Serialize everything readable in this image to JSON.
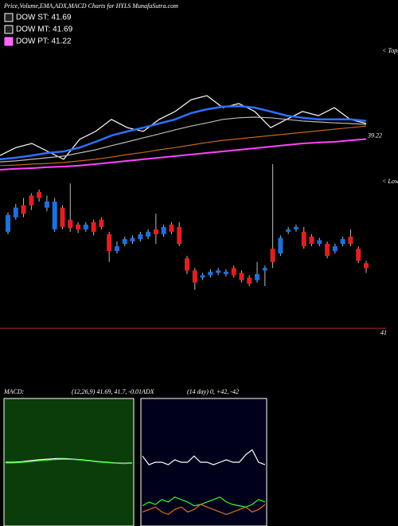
{
  "chart_data": [
    {
      "type": "line",
      "title": "Price,Volume,EMA,ADX,MACD Charts for HYLS MunafaSutra.com",
      "annotation": "< Tops",
      "legend": [
        {
          "label": "DOW ST: 41.69",
          "color": "#ffffff"
        },
        {
          "label": "DOW MT: 41.69",
          "color": "#ffffff"
        },
        {
          "label": "DOW PT: 41.22",
          "color": "#ff66ff"
        }
      ],
      "ylim": [
        38.2,
        42.1
      ],
      "series": [
        {
          "color": "#ffffff",
          "values": [
            38.7,
            38.95,
            39.08,
            38.83,
            38.58,
            39.21,
            39.46,
            39.84,
            39.58,
            39.46,
            39.84,
            40.09,
            40.46,
            40.59,
            40.21,
            40.34,
            40.09,
            39.58,
            39.84,
            40.09,
            39.96,
            40.21,
            39.84,
            39.71
          ]
        },
        {
          "color": "#2f6fff",
          "values": [
            38.58,
            38.63,
            38.7,
            38.78,
            38.83,
            38.95,
            39.13,
            39.33,
            39.46,
            39.58,
            39.71,
            39.84,
            40.04,
            40.16,
            40.24,
            40.26,
            40.21,
            40.09,
            39.96,
            39.89,
            39.84,
            39.84,
            39.84,
            39.79
          ]
        },
        {
          "color": "#bbbbbb",
          "values": [
            38.5,
            38.53,
            38.58,
            38.63,
            38.68,
            38.78,
            38.88,
            39.01,
            39.13,
            39.26,
            39.38,
            39.51,
            39.63,
            39.73,
            39.84,
            39.89,
            39.91,
            39.89,
            39.84,
            39.79,
            39.76,
            39.73,
            39.71,
            39.68
          ]
        },
        {
          "color": "#c8641e",
          "values": [
            38.38,
            38.4,
            38.43,
            38.45,
            38.48,
            38.53,
            38.58,
            38.65,
            38.73,
            38.8,
            38.88,
            38.95,
            39.03,
            39.11,
            39.18,
            39.23,
            39.28,
            39.33,
            39.38,
            39.43,
            39.48,
            39.53,
            39.58,
            39.63
          ]
        },
        {
          "color": "#ff44ff",
          "values": [
            38.25,
            38.28,
            38.3,
            38.33,
            38.35,
            38.38,
            38.43,
            38.48,
            38.53,
            38.58,
            38.63,
            38.68,
            38.73,
            38.78,
            38.83,
            38.88,
            38.93,
            38.98,
            39.03,
            39.08,
            39.11,
            39.13,
            39.18,
            39.22
          ]
        }
      ]
    },
    {
      "type": "candlestick",
      "annotation": "< Lows",
      "ylim": [
        41.0,
        42.4
      ],
      "up_color": "#1e6fe0",
      "down_color": "#e02020",
      "reference_line": 41,
      "open": [
        41.8,
        41.92,
        42.02,
        42.1,
        42.13,
        42.0,
        41.82,
        42.0,
        41.9,
        41.86,
        41.82,
        41.88,
        41.9,
        41.78,
        41.64,
        41.7,
        41.72,
        41.74,
        41.76,
        41.82,
        41.78,
        41.86,
        41.84,
        41.58,
        41.48,
        41.42,
        41.44,
        41.46,
        41.45,
        41.5,
        41.46,
        41.42,
        41.4,
        41.48,
        41.66,
        41.62,
        41.8,
        41.82,
        41.8,
        41.76,
        41.7,
        41.7,
        41.64,
        41.7,
        41.76,
        41.66,
        41.54
      ],
      "high": [
        41.96,
        42.03,
        42.08,
        42.12,
        42.15,
        42.1,
        42.08,
        42.02,
        42.2,
        41.88,
        41.88,
        41.9,
        41.92,
        41.8,
        41.72,
        41.76,
        41.77,
        41.8,
        41.82,
        41.95,
        41.86,
        41.88,
        41.88,
        41.6,
        41.5,
        41.46,
        41.49,
        41.5,
        41.49,
        41.52,
        41.48,
        41.44,
        41.55,
        41.52,
        42.36,
        41.77,
        41.84,
        41.86,
        41.84,
        41.78,
        41.75,
        41.72,
        41.7,
        41.76,
        41.82,
        41.68,
        41.56
      ],
      "low": [
        41.78,
        41.9,
        41.92,
        41.98,
        42.05,
        41.97,
        41.8,
        41.82,
        41.8,
        41.79,
        41.8,
        41.77,
        41.82,
        41.55,
        41.62,
        41.68,
        41.7,
        41.72,
        41.74,
        41.7,
        41.76,
        41.78,
        41.68,
        41.45,
        41.32,
        41.4,
        41.42,
        41.44,
        41.43,
        41.42,
        41.38,
        41.35,
        41.38,
        41.35,
        41.5,
        41.6,
        41.78,
        41.8,
        41.66,
        41.68,
        41.68,
        41.58,
        41.62,
        41.68,
        41.68,
        41.54,
        41.46
      ],
      "close": [
        41.94,
        42.0,
        41.95,
        42.02,
        42.08,
        42.05,
        42.05,
        41.84,
        41.83,
        41.82,
        41.86,
        41.8,
        41.84,
        41.64,
        41.68,
        41.74,
        41.75,
        41.78,
        41.8,
        41.78,
        41.84,
        41.8,
        41.7,
        41.48,
        41.38,
        41.44,
        41.47,
        41.48,
        41.47,
        41.44,
        41.4,
        41.37,
        41.45,
        41.5,
        41.55,
        41.75,
        41.82,
        41.84,
        41.68,
        41.7,
        41.73,
        41.6,
        41.68,
        41.74,
        41.7,
        41.56,
        41.5
      ]
    },
    {
      "type": "line",
      "title": "MACD:",
      "subtitle": "(12,26,9) 41.69, 41.7, -0.01",
      "ylim": [
        -2,
        2
      ],
      "background": "#0b3d0b",
      "series": [
        {
          "color": "#ffffff",
          "values": [
            0,
            0,
            0.02,
            0.05,
            0.08,
            0.1,
            0.12,
            0.12,
            0.1,
            0.08,
            0.05,
            0.02,
            0,
            -0.02,
            -0.03,
            -0.02
          ]
        },
        {
          "color": "#33ff33",
          "values": [
            -0.02,
            -0.02,
            0,
            0.02,
            0.05,
            0.07,
            0.09,
            0.1,
            0.09,
            0.07,
            0.04,
            0.01,
            -0.01,
            -0.03,
            -0.04,
            -0.03
          ]
        }
      ]
    },
    {
      "type": "line",
      "title": "ADX",
      "subtitle": "(14 day) 0, +42, -42",
      "ylim": [
        0,
        100
      ],
      "background": "#00001a",
      "series": [
        {
          "color": "#ffffff",
          "values": [
            55,
            48,
            50,
            50,
            48,
            52,
            50,
            50,
            55,
            50,
            50,
            48,
            50,
            52,
            50,
            50,
            56,
            60,
            50,
            48
          ]
        },
        {
          "color": "#33ff33",
          "values": [
            15,
            18,
            16,
            20,
            18,
            22,
            20,
            18,
            15,
            16,
            18,
            20,
            22,
            18,
            16,
            15,
            14,
            16,
            20,
            18
          ]
        },
        {
          "color": "#e07020",
          "values": [
            10,
            12,
            14,
            10,
            8,
            12,
            14,
            10,
            12,
            16,
            14,
            12,
            10,
            8,
            10,
            12,
            14,
            10,
            12,
            16
          ]
        }
      ]
    }
  ]
}
